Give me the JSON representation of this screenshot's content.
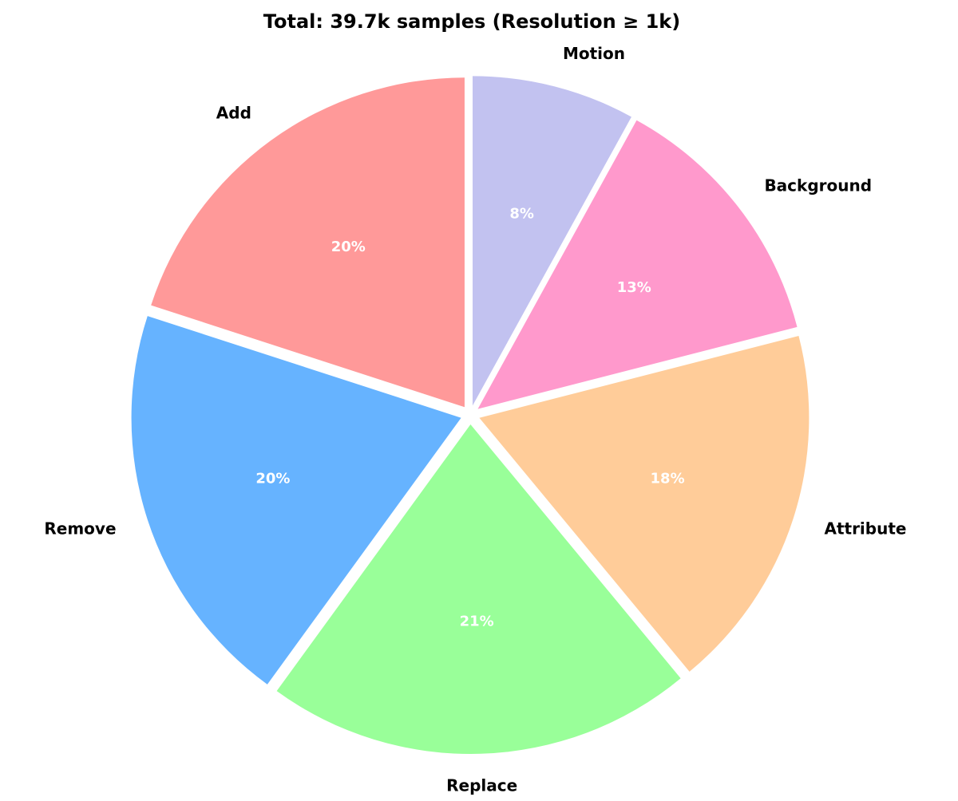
{
  "chart_data": {
    "type": "pie",
    "title": "Total: 39.7k samples (Resolution ≥ 1k)",
    "categories": [
      "Add",
      "Remove",
      "Replace",
      "Attribute",
      "Background",
      "Motion"
    ],
    "values": [
      20,
      20,
      21,
      18,
      13,
      8
    ],
    "value_labels": [
      "20%",
      "20%",
      "21%",
      "18%",
      "13%",
      "8%"
    ],
    "colors": [
      "#ff9999",
      "#66b3ff",
      "#99ff99",
      "#ffcc99",
      "#ff99cc",
      "#c2c2f0"
    ]
  }
}
